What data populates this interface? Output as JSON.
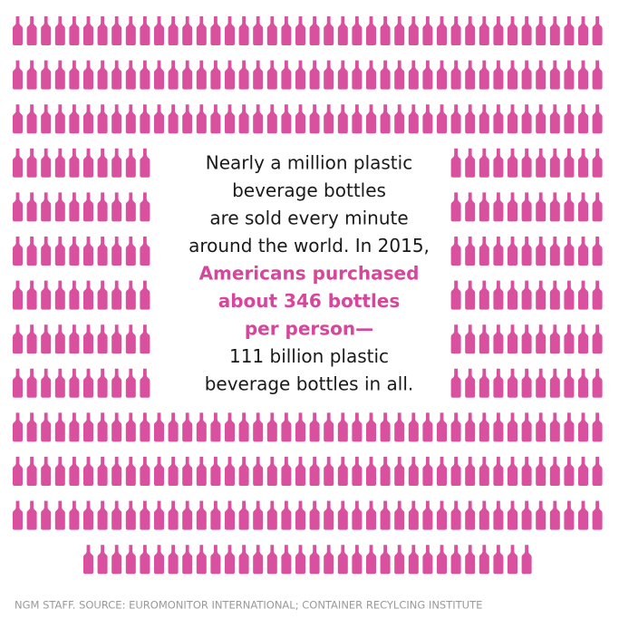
{
  "message": {
    "intro": [
      "Nearly a million plastic",
      "beverage bottles",
      "are sold every minute",
      "around the world. In 2015,"
    ],
    "highlight": [
      "Americans purchased",
      "about 346 bottles",
      "per person—"
    ],
    "closing": [
      "111 billion plastic",
      "beverage bottles in all."
    ]
  },
  "source": "NGM STAFF. SOURCE: EUROMONITOR INTERNATIONAL; CONTAINER RECYLCING INSTITUTE"
}
